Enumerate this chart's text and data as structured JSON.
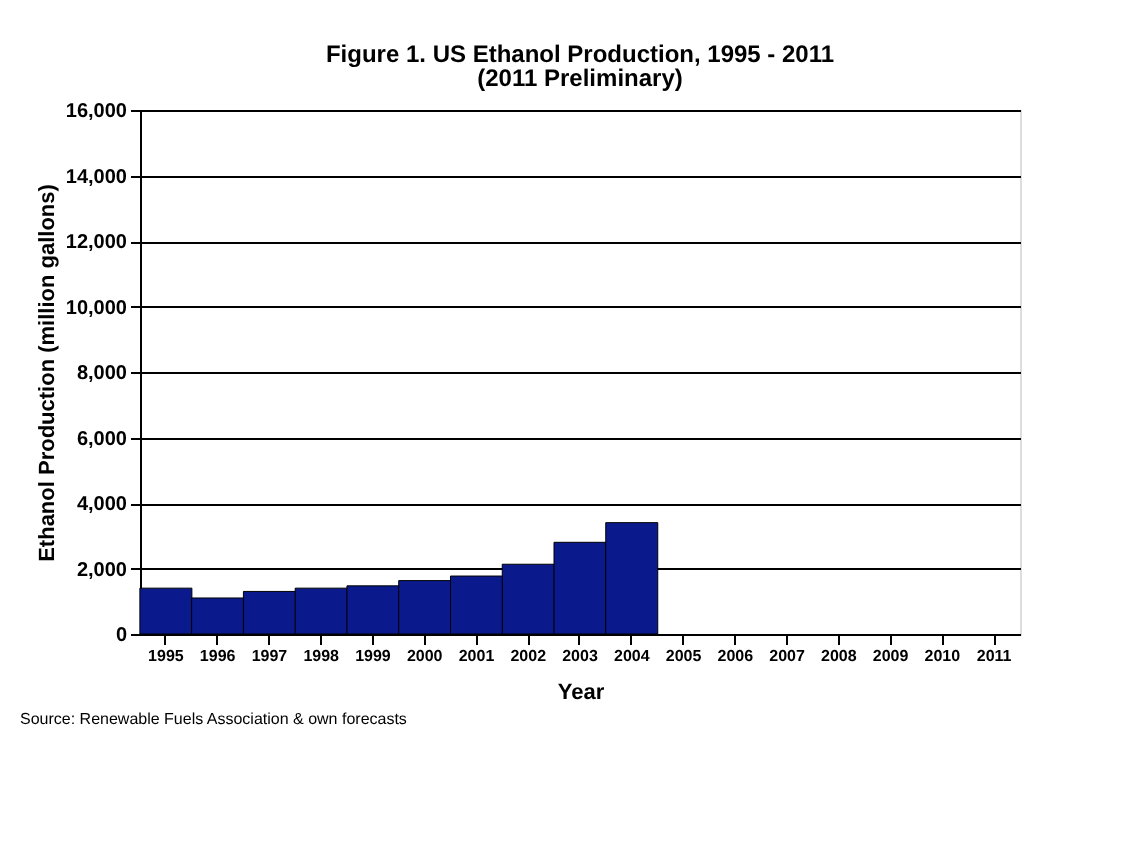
{
  "chart_data": {
    "type": "bar",
    "title": "Figure 1. US Ethanol Production, 1995 - 2011",
    "subtitle": "(2011 Preliminary)",
    "xlabel": "Year",
    "ylabel": "Ethanol Production (million gallons)",
    "categories": [
      "1995",
      "1996",
      "1997",
      "1998",
      "1999",
      "2000",
      "2001",
      "2002",
      "2003",
      "2004",
      "2005",
      "2006",
      "2007",
      "2008",
      "2009",
      "2010",
      "2011"
    ],
    "values": [
      1400,
      1100,
      1300,
      1400,
      1470,
      1630,
      1770,
      2130,
      2800,
      3400,
      null,
      null,
      null,
      null,
      null,
      null,
      null
    ],
    "color": "#0a1a8c",
    "ylim": [
      0,
      16000
    ],
    "yticks": [
      0,
      {
        "value": 2000,
        "label": "2,000"
      },
      {
        "value": 4000,
        "label": "4,000"
      },
      {
        "value": 6000,
        "label": "6,000"
      },
      {
        "value": 8000,
        "label": "8,000"
      },
      {
        "value": 10000,
        "label": "10,000"
      },
      {
        "value": 12000,
        "label": "12,000"
      },
      {
        "value": 14000,
        "label": "14,000"
      },
      {
        "value": 16000,
        "label": "16,000"
      }
    ],
    "grid": "y",
    "annotations": [
      "Source: Renewable Fuels Association & own forecasts"
    ]
  }
}
